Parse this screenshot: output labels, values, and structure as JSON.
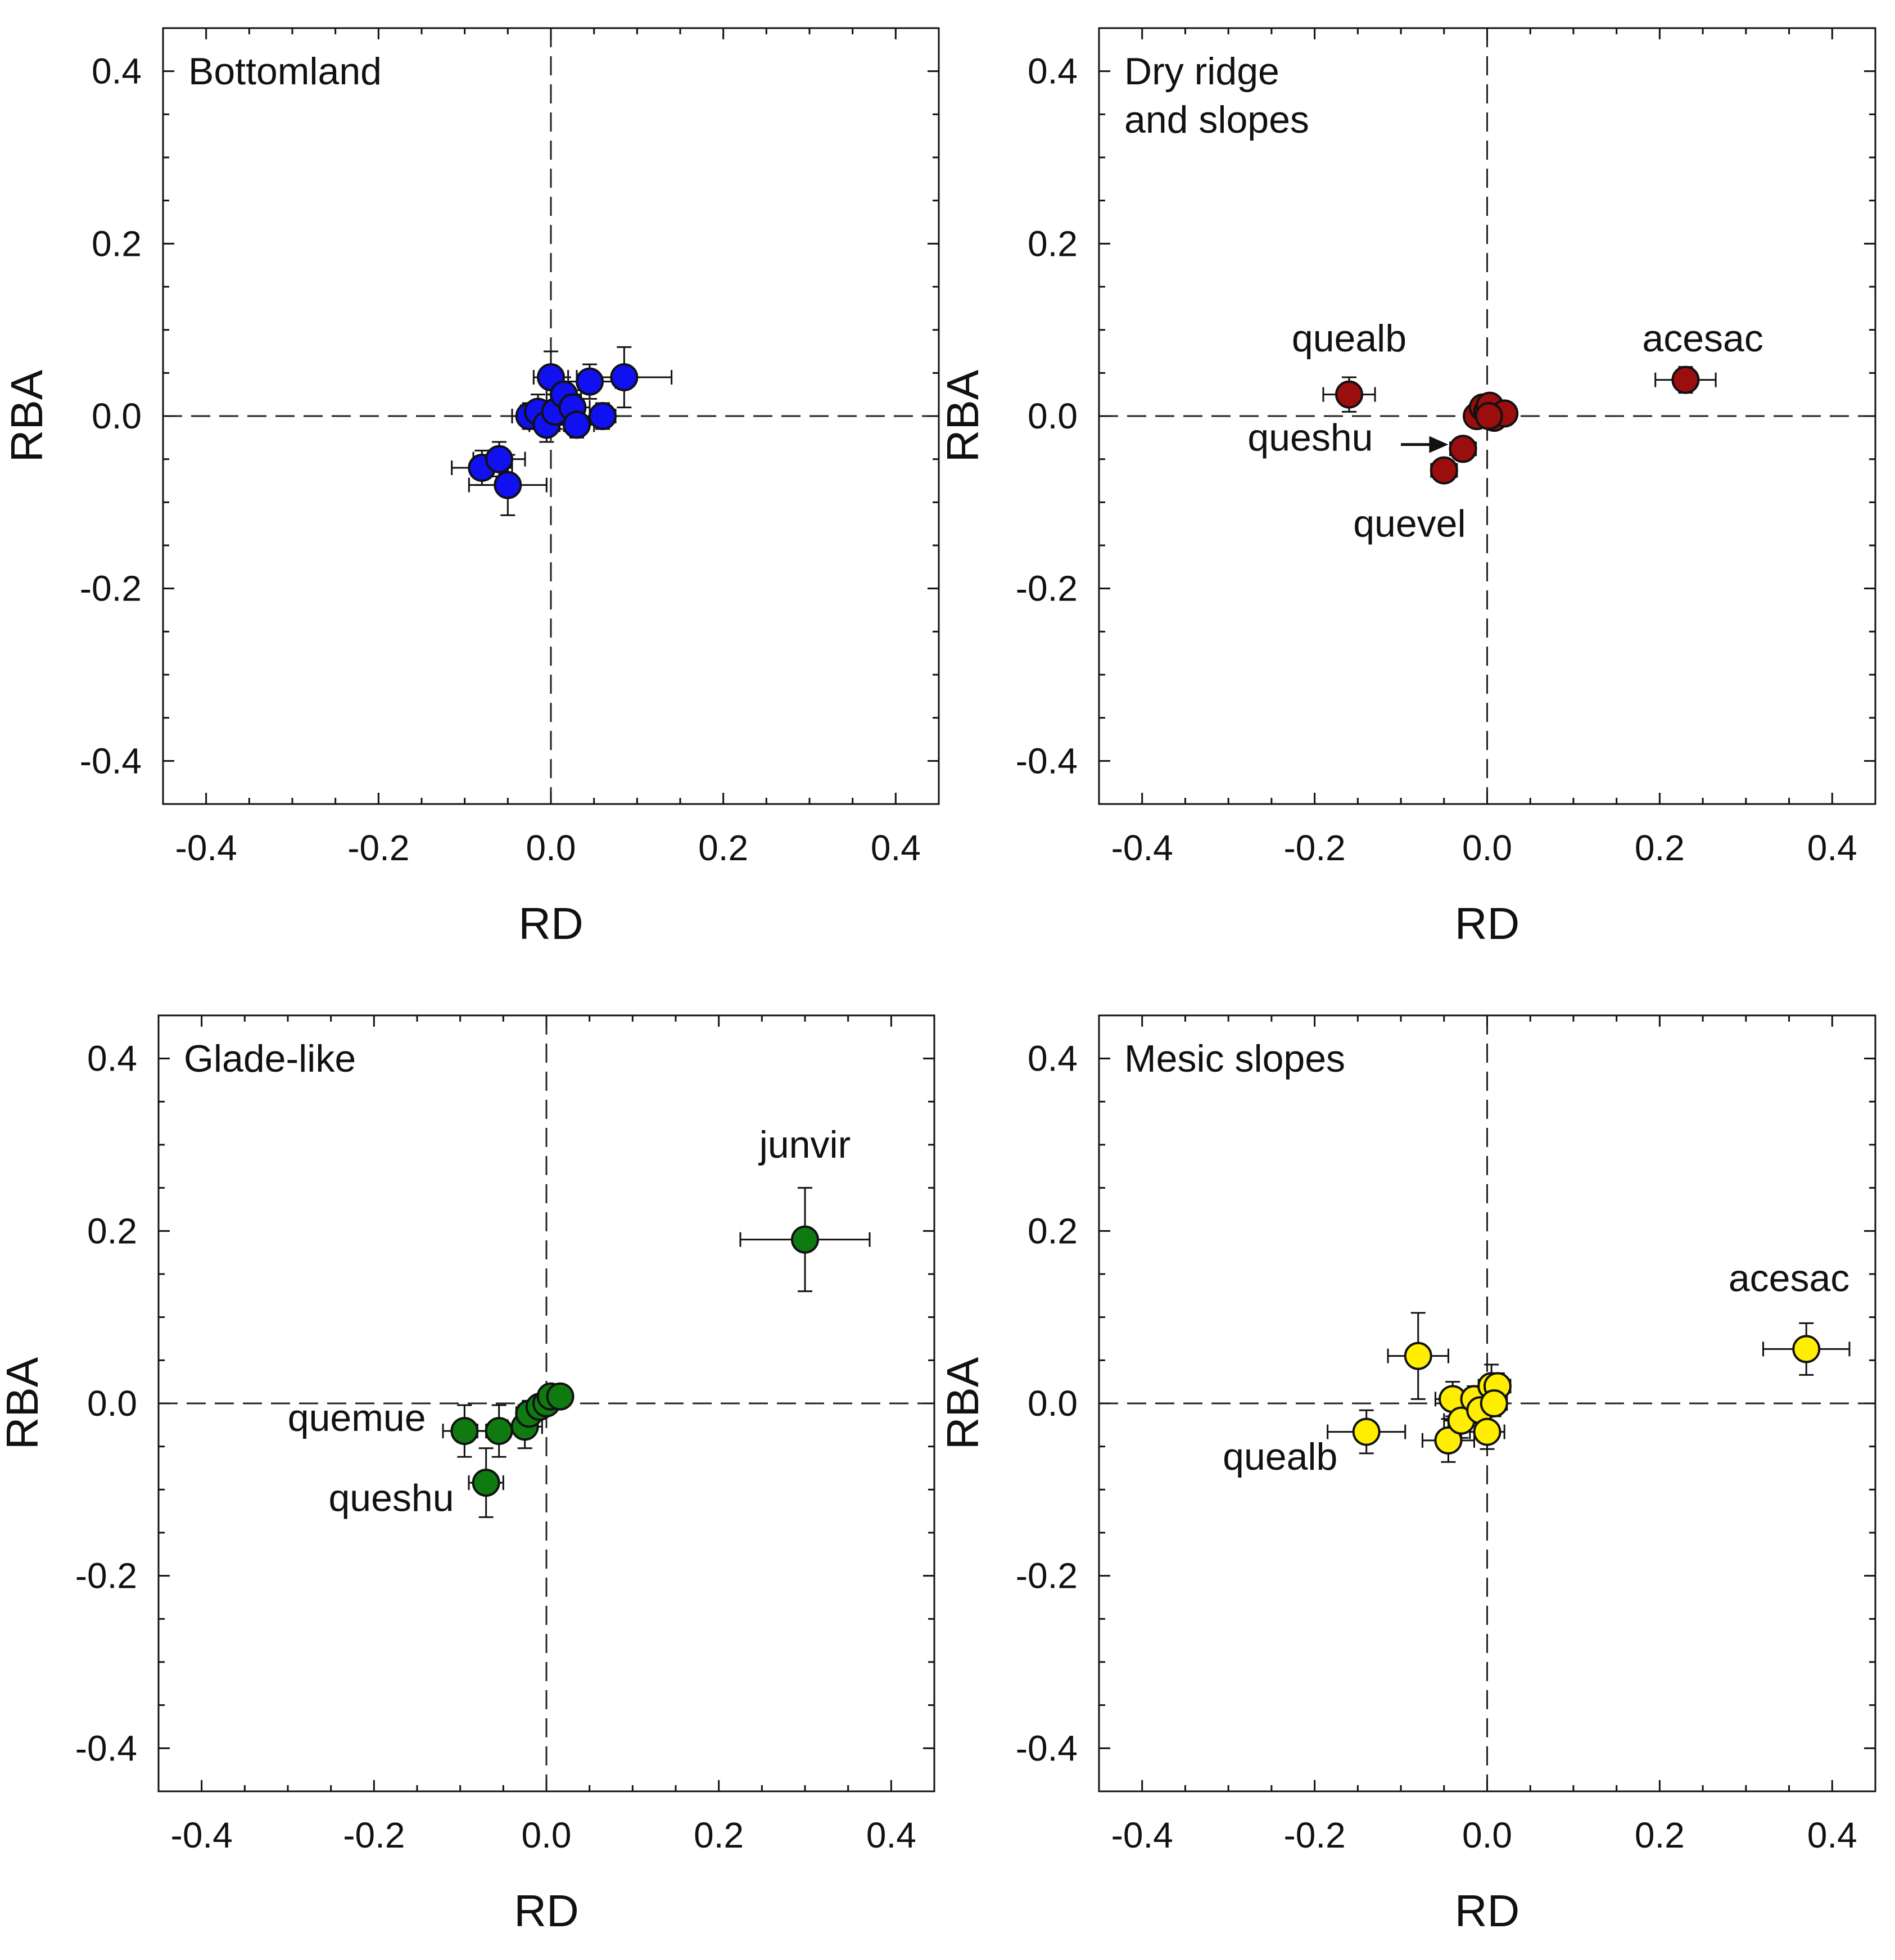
{
  "chart_data": [
    {
      "type": "scatter",
      "title": "Bottomland",
      "xlabel": "RD",
      "ylabel": "RBA",
      "xlim": [
        -0.45,
        0.45
      ],
      "ylim": [
        -0.45,
        0.45
      ],
      "xticks": [
        "-0.4",
        "-0.2",
        "0.0",
        "0.2",
        "0.4"
      ],
      "yticks": [
        "-0.4",
        "-0.2",
        "0.0",
        "0.2",
        "0.4"
      ],
      "color": "#1010f0",
      "points": [
        {
          "x": -0.08,
          "y": -0.06,
          "xerr": 0.035,
          "yerr": 0.02
        },
        {
          "x": -0.06,
          "y": -0.05,
          "xerr": 0.03,
          "yerr": 0.02
        },
        {
          "x": -0.05,
          "y": -0.08,
          "xerr": 0.045,
          "yerr": 0.035
        },
        {
          "x": -0.025,
          "y": 0.0,
          "xerr": 0.02,
          "yerr": 0.015
        },
        {
          "x": -0.015,
          "y": 0.005,
          "xerr": 0.02,
          "yerr": 0.02
        },
        {
          "x": -0.005,
          "y": -0.01,
          "xerr": 0.02,
          "yerr": 0.02
        },
        {
          "x": 0.0,
          "y": 0.045,
          "xerr": 0.02,
          "yerr": 0.03
        },
        {
          "x": 0.005,
          "y": 0.005,
          "xerr": 0.02,
          "yerr": 0.02
        },
        {
          "x": 0.015,
          "y": 0.025,
          "xerr": 0.02,
          "yerr": 0.02
        },
        {
          "x": 0.025,
          "y": 0.01,
          "xerr": 0.02,
          "yerr": 0.02
        },
        {
          "x": 0.03,
          "y": -0.01,
          "xerr": 0.02,
          "yerr": 0.015
        },
        {
          "x": 0.045,
          "y": 0.04,
          "xerr": 0.03,
          "yerr": 0.02
        },
        {
          "x": 0.06,
          "y": 0.0,
          "xerr": 0.015,
          "yerr": 0.015
        },
        {
          "x": 0.085,
          "y": 0.045,
          "xerr": 0.055,
          "yerr": 0.035
        }
      ],
      "annotations": []
    },
    {
      "type": "scatter",
      "title": "Dry ridge and slopes",
      "title_lines": [
        "Dry ridge",
        "and slopes"
      ],
      "xlabel": "RD",
      "ylabel": "RBA",
      "xlim": [
        -0.45,
        0.45
      ],
      "ylim": [
        -0.45,
        0.45
      ],
      "xticks": [
        "-0.4",
        "-0.2",
        "0.0",
        "0.2",
        "0.4"
      ],
      "yticks": [
        "-0.4",
        "-0.2",
        "0.0",
        "0.2",
        "0.4"
      ],
      "color": "#9a0e0e",
      "points": [
        {
          "x": -0.16,
          "y": 0.025,
          "xerr": 0.03,
          "yerr": 0.02
        },
        {
          "x": 0.23,
          "y": 0.042,
          "xerr": 0.035,
          "yerr": 0.015
        },
        {
          "x": -0.05,
          "y": -0.063,
          "xerr": 0.015,
          "yerr": 0.012
        },
        {
          "x": -0.028,
          "y": -0.038,
          "xerr": 0.015,
          "yerr": 0.012
        },
        {
          "x": -0.012,
          "y": 0.0,
          "xerr": 0.01,
          "yerr": 0.01
        },
        {
          "x": -0.005,
          "y": 0.01,
          "xerr": 0.01,
          "yerr": 0.01
        },
        {
          "x": 0.0,
          "y": 0.005,
          "xerr": 0.01,
          "yerr": 0.01
        },
        {
          "x": 0.003,
          "y": 0.012,
          "xerr": 0.01,
          "yerr": 0.01
        },
        {
          "x": 0.008,
          "y": -0.002,
          "xerr": 0.01,
          "yerr": 0.01
        },
        {
          "x": 0.02,
          "y": 0.003,
          "xerr": 0.01,
          "yerr": 0.01
        },
        {
          "x": 0.002,
          "y": 0.0,
          "xerr": 0.01,
          "yerr": 0.01
        }
      ],
      "annotations": [
        {
          "text": "quealb",
          "x": -0.16,
          "y": 0.075
        },
        {
          "text": "acesac",
          "x": 0.25,
          "y": 0.075
        },
        {
          "text": "queshu",
          "x": -0.205,
          "y": -0.04
        },
        {
          "text": "quevel",
          "x": -0.09,
          "y": -0.14
        }
      ]
    },
    {
      "type": "scatter",
      "title": "Glade-like",
      "xlabel": "RD",
      "ylabel": "RBA",
      "xlim": [
        -0.45,
        0.45
      ],
      "ylim": [
        -0.45,
        0.45
      ],
      "xticks": [
        "-0.4",
        "-0.2",
        "0.0",
        "0.2",
        "0.4"
      ],
      "yticks": [
        "-0.4",
        "-0.2",
        "0.0",
        "0.2",
        "0.4"
      ],
      "color": "#0f7a0f",
      "points": [
        {
          "x": 0.3,
          "y": 0.19,
          "xerr": 0.075,
          "yerr": 0.06
        },
        {
          "x": -0.095,
          "y": -0.032,
          "xerr": 0.025,
          "yerr": 0.03
        },
        {
          "x": -0.055,
          "y": -0.032,
          "xerr": 0.025,
          "yerr": 0.03
        },
        {
          "x": -0.025,
          "y": -0.027,
          "xerr": 0.02,
          "yerr": 0.025
        },
        {
          "x": -0.07,
          "y": -0.092,
          "xerr": 0.02,
          "yerr": 0.04
        },
        {
          "x": -0.02,
          "y": -0.012,
          "xerr": 0.015,
          "yerr": 0.015
        },
        {
          "x": -0.008,
          "y": -0.004,
          "xerr": 0.01,
          "yerr": 0.01
        },
        {
          "x": 0.0,
          "y": 0.0,
          "xerr": 0.01,
          "yerr": 0.01
        },
        {
          "x": 0.005,
          "y": 0.008,
          "xerr": 0.01,
          "yerr": 0.01
        },
        {
          "x": 0.016,
          "y": 0.008,
          "xerr": 0.01,
          "yerr": 0.01
        }
      ],
      "annotations": [
        {
          "text": "junvir",
          "x": 0.3,
          "y": 0.285
        },
        {
          "text": "quemue",
          "x": -0.22,
          "y": -0.032
        },
        {
          "text": "queshu",
          "x": -0.18,
          "y": -0.125
        }
      ]
    },
    {
      "type": "scatter",
      "title": "Mesic slopes",
      "xlabel": "RD",
      "ylabel": "RBA",
      "xlim": [
        -0.45,
        0.45
      ],
      "ylim": [
        -0.45,
        0.45
      ],
      "xticks": [
        "-0.4",
        "-0.2",
        "0.0",
        "0.2",
        "0.4"
      ],
      "yticks": [
        "-0.4",
        "-0.2",
        "0.0",
        "0.2",
        "0.4"
      ],
      "color": "#ffee00",
      "points": [
        {
          "x": 0.37,
          "y": 0.063,
          "xerr": 0.05,
          "yerr": 0.03
        },
        {
          "x": -0.08,
          "y": 0.055,
          "xerr": 0.035,
          "yerr": 0.05
        },
        {
          "x": -0.14,
          "y": -0.033,
          "xerr": 0.045,
          "yerr": 0.025
        },
        {
          "x": -0.04,
          "y": 0.005,
          "xerr": 0.02,
          "yerr": 0.02
        },
        {
          "x": -0.045,
          "y": -0.043,
          "xerr": 0.03,
          "yerr": 0.025
        },
        {
          "x": -0.03,
          "y": -0.02,
          "xerr": 0.02,
          "yerr": 0.02
        },
        {
          "x": -0.015,
          "y": 0.005,
          "xerr": 0.015,
          "yerr": 0.015
        },
        {
          "x": -0.008,
          "y": -0.008,
          "xerr": 0.015,
          "yerr": 0.015
        },
        {
          "x": 0.0,
          "y": -0.033,
          "xerr": 0.02,
          "yerr": 0.02
        },
        {
          "x": 0.005,
          "y": 0.02,
          "xerr": 0.015,
          "yerr": 0.025
        },
        {
          "x": 0.012,
          "y": 0.02,
          "xerr": 0.015,
          "yerr": 0.015
        },
        {
          "x": 0.008,
          "y": 0.0,
          "xerr": 0.015,
          "yerr": 0.015
        }
      ],
      "annotations": [
        {
          "text": "acesac",
          "x": 0.35,
          "y": 0.13
        },
        {
          "text": "quealb",
          "x": -0.24,
          "y": -0.077
        }
      ]
    }
  ]
}
